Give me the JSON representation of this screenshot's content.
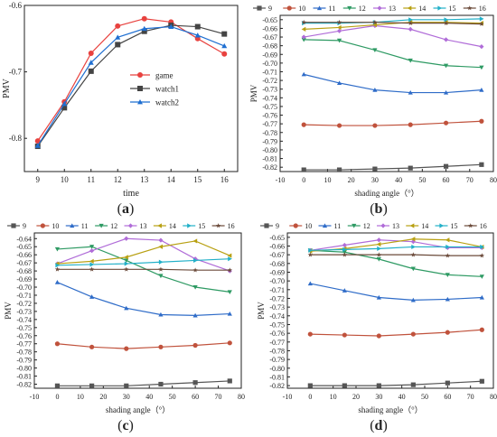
{
  "figure": {
    "panels": [
      {
        "id": "a",
        "label": "a"
      },
      {
        "id": "b",
        "label": "b"
      },
      {
        "id": "c",
        "label": "c"
      },
      {
        "id": "d",
        "label": "d"
      }
    ]
  },
  "chart_data": [
    {
      "panel": "a",
      "type": "line",
      "xlabel": "time",
      "ylabel": "PMV",
      "xlim": [
        8.5,
        16.5
      ],
      "ylim": [
        -0.85,
        -0.6
      ],
      "x_ticks": [
        "9",
        "10",
        "11",
        "12",
        "13",
        "14",
        "15",
        "16"
      ],
      "y_ticks": [
        "-0.8",
        "-0.7",
        "-0.6"
      ],
      "legend_position": "center",
      "grid": false,
      "x": [
        9,
        10,
        11,
        12,
        13,
        14,
        15,
        16
      ],
      "series": [
        {
          "name": "game",
          "color": "#e8423f",
          "marker": "circle",
          "values": [
            -0.804,
            -0.745,
            -0.672,
            -0.631,
            -0.62,
            -0.625,
            -0.65,
            -0.673
          ]
        },
        {
          "name": "watch1",
          "color": "#444444",
          "marker": "square",
          "values": [
            -0.812,
            -0.754,
            -0.699,
            -0.659,
            -0.639,
            -0.63,
            -0.632,
            -0.643
          ]
        },
        {
          "name": "watch2",
          "color": "#1f6fd1",
          "marker": "triangle",
          "values": [
            -0.811,
            -0.748,
            -0.686,
            -0.648,
            -0.635,
            -0.632,
            -0.645,
            -0.661
          ]
        }
      ]
    },
    {
      "panel": "b",
      "type": "line",
      "xlabel": "shading angle（°）",
      "ylabel": "PMV",
      "xlim": [
        -10,
        80
      ],
      "ylim": [
        -0.825,
        -0.645
      ],
      "x_ticks": [
        "-10",
        "0",
        "10",
        "20",
        "30",
        "40",
        "50",
        "60",
        "70",
        "80"
      ],
      "y_ticks": [
        "-0.82",
        "-0.81",
        "-0.80",
        "-0.79",
        "-0.78",
        "-0.77",
        "-0.76",
        "-0.75",
        "-0.74",
        "-0.73",
        "-0.72",
        "-0.71",
        "-0.70",
        "-0.69",
        "-0.68",
        "-0.67",
        "-0.66",
        "-0.65"
      ],
      "legend_position": "top",
      "grid": false,
      "x": [
        0,
        15,
        30,
        45,
        60,
        75
      ],
      "series": [
        {
          "name": "9",
          "color": "#555555",
          "marker": "square",
          "values": [
            -0.823,
            -0.823,
            -0.822,
            -0.821,
            -0.819,
            -0.817
          ]
        },
        {
          "name": "10",
          "color": "#c0523c",
          "marker": "circle",
          "values": [
            -0.771,
            -0.772,
            -0.772,
            -0.771,
            -0.769,
            -0.767
          ]
        },
        {
          "name": "11",
          "color": "#2f6cc8",
          "marker": "triangle",
          "values": [
            -0.713,
            -0.723,
            -0.731,
            -0.734,
            -0.734,
            -0.731
          ]
        },
        {
          "name": "12",
          "color": "#2e9a63",
          "marker": "tri-down",
          "values": [
            -0.673,
            -0.674,
            -0.685,
            -0.697,
            -0.703,
            -0.705
          ]
        },
        {
          "name": "13",
          "color": "#b06cd8",
          "marker": "diamond",
          "values": [
            -0.67,
            -0.663,
            -0.657,
            -0.661,
            -0.673,
            -0.681
          ]
        },
        {
          "name": "14",
          "color": "#b8a012",
          "marker": "tri-left",
          "values": [
            -0.661,
            -0.659,
            -0.656,
            -0.653,
            -0.653,
            -0.654
          ]
        },
        {
          "name": "15",
          "color": "#22b0c8",
          "marker": "tri-right",
          "values": [
            -0.654,
            -0.654,
            -0.653,
            -0.65,
            -0.65,
            -0.649
          ]
        },
        {
          "name": "16",
          "color": "#6b4a3a",
          "marker": "star",
          "values": [
            -0.653,
            -0.653,
            -0.653,
            -0.654,
            -0.654,
            -0.655
          ]
        }
      ]
    },
    {
      "panel": "c",
      "type": "line",
      "xlabel": "shading angle（°）",
      "ylabel": "PMV",
      "xlim": [
        -10,
        80
      ],
      "ylim": [
        -0.825,
        -0.633
      ],
      "x_ticks": [
        "-10",
        "0",
        "10",
        "20",
        "30",
        "40",
        "50",
        "60",
        "70",
        "80"
      ],
      "y_ticks": [
        "-0.82",
        "-0.81",
        "-0.80",
        "-0.79",
        "-0.78",
        "-0.77",
        "-0.76",
        "-0.75",
        "-0.74",
        "-0.73",
        "-0.72",
        "-0.71",
        "-0.70",
        "-0.69",
        "-0.68",
        "-0.67",
        "-0.66",
        "-0.65",
        "-0.64"
      ],
      "legend_position": "top",
      "grid": false,
      "x": [
        0,
        15,
        30,
        45,
        60,
        75
      ],
      "series": [
        {
          "name": "9",
          "color": "#555555",
          "marker": "square",
          "values": [
            -0.822,
            -0.822,
            -0.822,
            -0.82,
            -0.818,
            -0.816
          ]
        },
        {
          "name": "10",
          "color": "#c0523c",
          "marker": "circle",
          "values": [
            -0.77,
            -0.774,
            -0.776,
            -0.774,
            -0.772,
            -0.769
          ]
        },
        {
          "name": "11",
          "color": "#2f6cc8",
          "marker": "triangle",
          "values": [
            -0.694,
            -0.712,
            -0.726,
            -0.734,
            -0.735,
            -0.733
          ]
        },
        {
          "name": "12",
          "color": "#2e9a63",
          "marker": "tri-down",
          "values": [
            -0.653,
            -0.65,
            -0.667,
            -0.686,
            -0.7,
            -0.706
          ]
        },
        {
          "name": "13",
          "color": "#b06cd8",
          "marker": "diamond",
          "values": [
            -0.671,
            -0.655,
            -0.64,
            -0.642,
            -0.665,
            -0.68
          ]
        },
        {
          "name": "14",
          "color": "#b8a012",
          "marker": "tri-left",
          "values": [
            -0.671,
            -0.668,
            -0.663,
            -0.65,
            -0.643,
            -0.661
          ]
        },
        {
          "name": "15",
          "color": "#22b0c8",
          "marker": "tri-right",
          "values": [
            -0.673,
            -0.672,
            -0.671,
            -0.669,
            -0.667,
            -0.665
          ]
        },
        {
          "name": "16",
          "color": "#6b4a3a",
          "marker": "star",
          "values": [
            -0.678,
            -0.678,
            -0.678,
            -0.678,
            -0.679,
            -0.679
          ]
        }
      ]
    },
    {
      "panel": "d",
      "type": "line",
      "xlabel": "shading angle（°）",
      "ylabel": "PMV",
      "xlim": [
        -10,
        80
      ],
      "ylim": [
        -0.823,
        -0.645
      ],
      "x_ticks": [
        "-10",
        "0",
        "10",
        "20",
        "30",
        "40",
        "50",
        "60",
        "70",
        "80"
      ],
      "y_ticks": [
        "-0.82",
        "-0.81",
        "-0.80",
        "-0.79",
        "-0.78",
        "-0.77",
        "-0.76",
        "-0.75",
        "-0.74",
        "-0.73",
        "-0.72",
        "-0.71",
        "-0.70",
        "-0.69",
        "-0.68",
        "-0.67",
        "-0.66",
        "-0.65"
      ],
      "legend_position": "top",
      "grid": false,
      "x": [
        0,
        15,
        30,
        45,
        60,
        75
      ],
      "series": [
        {
          "name": "9",
          "color": "#555555",
          "marker": "square",
          "values": [
            -0.82,
            -0.82,
            -0.82,
            -0.819,
            -0.817,
            -0.815
          ]
        },
        {
          "name": "10",
          "color": "#c0523c",
          "marker": "circle",
          "values": [
            -0.761,
            -0.762,
            -0.763,
            -0.761,
            -0.759,
            -0.756
          ]
        },
        {
          "name": "11",
          "color": "#2f6cc8",
          "marker": "triangle",
          "values": [
            -0.703,
            -0.711,
            -0.719,
            -0.722,
            -0.721,
            -0.719
          ]
        },
        {
          "name": "12",
          "color": "#2e9a63",
          "marker": "tri-down",
          "values": [
            -0.665,
            -0.667,
            -0.675,
            -0.686,
            -0.693,
            -0.695
          ]
        },
        {
          "name": "13",
          "color": "#b06cd8",
          "marker": "diamond",
          "values": [
            -0.665,
            -0.659,
            -0.653,
            -0.655,
            -0.662,
            -0.662
          ]
        },
        {
          "name": "14",
          "color": "#b8a012",
          "marker": "tri-left",
          "values": [
            -0.666,
            -0.663,
            -0.658,
            -0.652,
            -0.653,
            -0.661
          ]
        },
        {
          "name": "15",
          "color": "#22b0c8",
          "marker": "tri-right",
          "values": [
            -0.665,
            -0.664,
            -0.663,
            -0.661,
            -0.661,
            -0.661
          ]
        },
        {
          "name": "16",
          "color": "#6b4a3a",
          "marker": "star",
          "values": [
            -0.67,
            -0.67,
            -0.67,
            -0.67,
            -0.671,
            -0.671
          ]
        }
      ]
    }
  ]
}
